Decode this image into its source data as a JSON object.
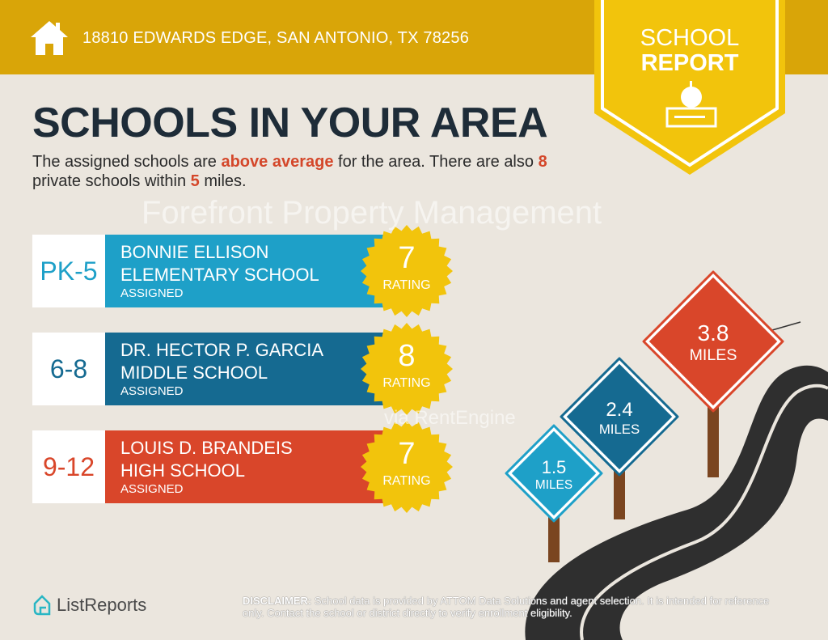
{
  "header": {
    "address": "18810 EDWARDS EDGE, SAN ANTONIO, TX 78256",
    "icon": "house-icon"
  },
  "banner": {
    "line1": "SCHOOL",
    "line2": "REPORT",
    "icon": "apple-books-icon"
  },
  "title": "SCHOOLS IN YOUR AREA",
  "summary": {
    "p1": "The assigned schools are ",
    "highlight": "above average",
    "p2": " for the area. There are also ",
    "private_count": "8",
    "p3": " private schools within ",
    "miles": "5",
    "p4": " miles."
  },
  "schools": [
    {
      "grades": "PK-5",
      "name1": "BONNIE ELLISON",
      "name2": "ELEMENTARY SCHOOL",
      "status": "ASSIGNED",
      "rating": "7",
      "rating_label": "RATING",
      "color": "#1ea0c8"
    },
    {
      "grades": "6-8",
      "name1": "DR. HECTOR P. GARCIA",
      "name2": "MIDDLE SCHOOL",
      "status": "ASSIGNED",
      "rating": "8",
      "rating_label": "RATING",
      "color": "#156a91"
    },
    {
      "grades": "9-12",
      "name1": "LOUIS D. BRANDEIS",
      "name2": "HIGH SCHOOL",
      "status": "ASSIGNED",
      "rating": "7",
      "rating_label": "RATING",
      "color": "#d9462a"
    }
  ],
  "signs": [
    {
      "value": "1.5",
      "unit": "MILES",
      "color": "#1ea0c8"
    },
    {
      "value": "2.4",
      "unit": "MILES",
      "color": "#156a91"
    },
    {
      "value": "3.8",
      "unit": "MILES",
      "color": "#d9462a"
    }
  ],
  "watermark": {
    "line1": "Forefront Property Management",
    "line2": "via RentEngine"
  },
  "footer": {
    "logo": "ListReports",
    "disclaimer_label": "DISCLAIMER:",
    "disclaimer": " School data is provided by ATTOM Data Solutions and agent selection. It is intended for reference only. Contact the school or district directly to verify enrollment eligibility."
  }
}
